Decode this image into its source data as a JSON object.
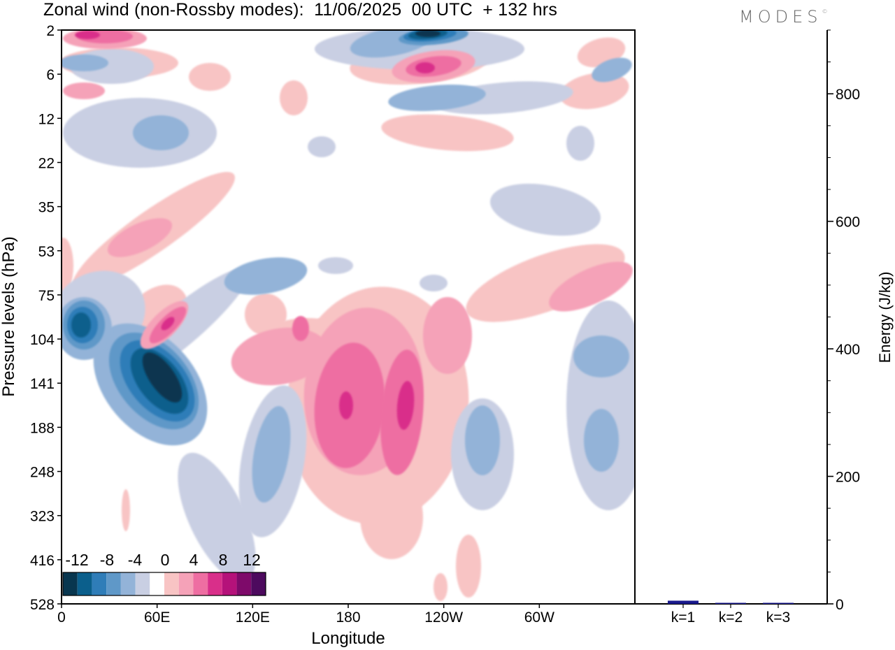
{
  "header": {
    "title": "Zonal wind (non-Rossby modes):  11/06/2025  00 UTC  + 132 hrs",
    "logo": "MODES",
    "logo_mark": "©"
  },
  "chart_data": [
    {
      "type": "heatmap",
      "title": "Zonal wind (non-Rossby modes):  11/06/2025  00 UTC  + 132 hrs",
      "xlabel": "Longitude",
      "ylabel": "Pressure levels (hPa)",
      "x_ticks": [
        "0",
        "60E",
        "120E",
        "180",
        "120W",
        "60W"
      ],
      "x_tick_values": [
        0,
        60,
        120,
        180,
        240,
        300
      ],
      "xlim": [
        0,
        360
      ],
      "y_ticks": [
        "2",
        "6",
        "12",
        "22",
        "35",
        "53",
        "75",
        "104",
        "141",
        "188",
        "248",
        "323",
        "416",
        "528"
      ],
      "y_scale": "model levels (2 hPa top, 528 hPa bottom)",
      "colorbar": {
        "labels": [
          "-12",
          "-8",
          "-4",
          "0",
          "4",
          "8",
          "12"
        ],
        "label_values": [
          -12,
          -8,
          -4,
          0,
          4,
          8,
          12
        ],
        "levels": [
          -14,
          -12,
          -10,
          -8,
          -6,
          -4,
          -2,
          2,
          4,
          6,
          8,
          10,
          12,
          14
        ],
        "colors": [
          "#08364f",
          "#0b5f8c",
          "#2f7db8",
          "#5f98c8",
          "#93b3d8",
          "#c9cfe3",
          "#ffffff",
          "#f8c4c4",
          "#f5a2b8",
          "#ee6ea2",
          "#d92f8a",
          "#b5127a",
          "#7e0a6a",
          "#4d0a5e"
        ]
      },
      "features": [
        {
          "name": "strong easterly core",
          "lon": 72,
          "level": "141",
          "value": -14
        },
        {
          "name": "easterly core",
          "lon": 12,
          "level": "104",
          "value": -10
        },
        {
          "name": "stratospheric easterly core",
          "lon": 236,
          "level": "2",
          "value": -14
        },
        {
          "name": "westerly maximum",
          "lon": 210,
          "level": "141",
          "value": 10
        },
        {
          "name": "westerly maximum",
          "lon": 182,
          "level": "141",
          "value": 8
        },
        {
          "name": "westerly maximum",
          "lon": 66,
          "level": "104",
          "value": 8
        },
        {
          "name": "upper westerly maximum",
          "lon": 240,
          "level": "6",
          "value": 8
        },
        {
          "name": "upper westerly maximum",
          "lon": 22,
          "level": "2",
          "value": 8
        }
      ],
      "grid": false,
      "legend": "bottom-left"
    },
    {
      "type": "bar",
      "categories": [
        "k=1",
        "k=2",
        "k=3"
      ],
      "values": [
        5,
        1.5,
        1
      ],
      "ylabel": "Energy (J/kg)",
      "y_ticks": [
        "0",
        "200",
        "400",
        "600",
        "800"
      ],
      "ylim": [
        0,
        900
      ],
      "bar_color": "#1a1a8c",
      "axis_side": "right"
    }
  ]
}
